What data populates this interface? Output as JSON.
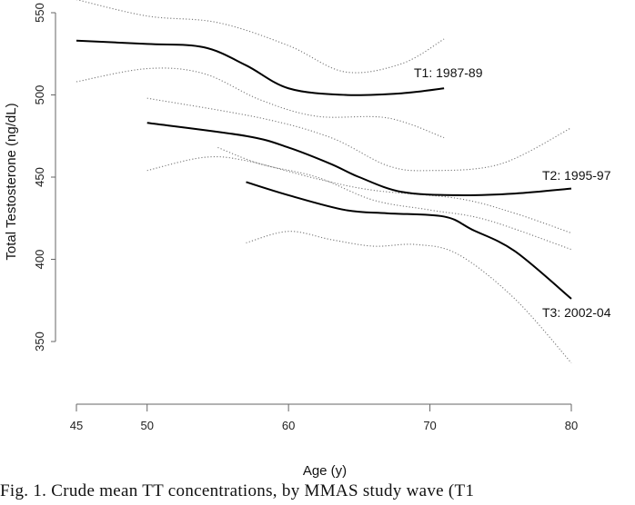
{
  "chart_data": {
    "type": "line",
    "title": "",
    "xlabel": "Age (y)",
    "ylabel": "Total Testosterone (ng/dL)",
    "xlim": [
      45,
      80
    ],
    "ylim": [
      350,
      550
    ],
    "xticks": [
      45,
      50,
      60,
      70,
      80
    ],
    "yticks": [
      350,
      400,
      450,
      500,
      550
    ],
    "grid": false,
    "series": [
      {
        "name": "T1: 1987-89",
        "mean": {
          "x": [
            45,
            50,
            54,
            57,
            60,
            64,
            68,
            71
          ],
          "y": [
            533,
            531,
            529,
            518,
            504,
            500,
            501,
            504
          ]
        },
        "upper": {
          "x": [
            45,
            50,
            55,
            60,
            64,
            68,
            71
          ],
          "y": [
            558,
            548,
            544,
            530,
            514,
            519,
            534
          ]
        },
        "lower": {
          "x": [
            45,
            50,
            54,
            58,
            62,
            67,
            71
          ],
          "y": [
            508,
            516,
            513,
            497,
            487,
            486,
            474
          ]
        }
      },
      {
        "name": "T2: 1995-97",
        "mean": {
          "x": [
            50,
            57,
            60,
            63,
            65,
            68,
            72,
            76,
            80
          ],
          "y": [
            483,
            475,
            468,
            458,
            450,
            441,
            439,
            440,
            443
          ]
        },
        "upper": {
          "x": [
            50,
            58,
            63,
            67,
            70,
            75,
            80
          ],
          "y": [
            498,
            486,
            474,
            457,
            454,
            458,
            480
          ]
        },
        "lower": {
          "x": [
            50,
            54,
            57,
            62,
            66,
            72,
            76,
            80
          ],
          "y": [
            454,
            462,
            460,
            449,
            442,
            437,
            428,
            416
          ]
        }
      },
      {
        "name": "T3: 2002-04",
        "mean": {
          "x": [
            57,
            60,
            64,
            67,
            71,
            73,
            76,
            80
          ],
          "y": [
            447,
            439,
            430,
            428,
            426,
            418,
            405,
            376
          ]
        },
        "upper": {
          "x": [
            55,
            58,
            62,
            66,
            70,
            74,
            80
          ],
          "y": [
            468,
            458,
            450,
            436,
            430,
            424,
            406
          ]
        },
        "lower": {
          "x": [
            57,
            60,
            63,
            66,
            69,
            72,
            76,
            80
          ],
          "y": [
            410,
            417,
            412,
            408,
            409,
            403,
            376,
            337
          ]
        }
      }
    ],
    "series_labels": [
      "T1: 1987-89",
      "T2: 1995-97",
      "T3: 2002-04"
    ]
  },
  "caption": "Fig. 1. Crude mean TT concentrations, by MMAS study wave (T1"
}
